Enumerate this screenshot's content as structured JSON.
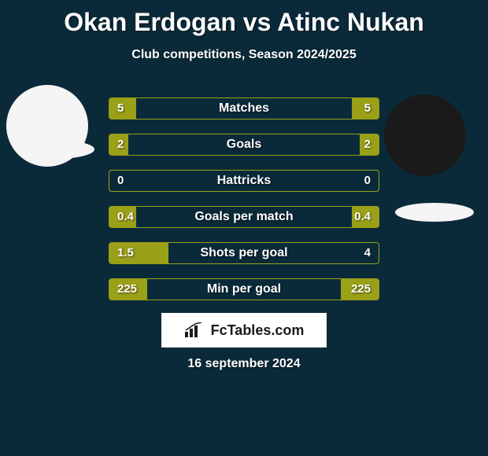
{
  "title": "Okan Erdogan vs Atinc Nukan",
  "subtitle": "Club competitions, Season 2024/2025",
  "date": "16 september 2024",
  "branding": "FcTables.com",
  "colors": {
    "background": "#0a2a3a",
    "border": "#9aa018",
    "bar": "#9aa018",
    "text": "#ffffff",
    "avatar_light": "#f5f5f5",
    "avatar_dark": "#1a1a1a",
    "brand_bg": "#ffffff"
  },
  "stats": [
    {
      "label": "Matches",
      "left_val": "5",
      "right_val": "5",
      "left_pct": 10,
      "right_pct": 10
    },
    {
      "label": "Goals",
      "left_val": "2",
      "right_val": "2",
      "left_pct": 7,
      "right_pct": 7
    },
    {
      "label": "Hattricks",
      "left_val": "0",
      "right_val": "0",
      "left_pct": 0,
      "right_pct": 0
    },
    {
      "label": "Goals per match",
      "left_val": "0.4",
      "right_val": "0.4",
      "left_pct": 10,
      "right_pct": 10
    },
    {
      "label": "Shots per goal",
      "left_val": "1.5",
      "right_val": "4",
      "left_pct": 22,
      "right_pct": 0
    },
    {
      "label": "Min per goal",
      "left_val": "225",
      "right_val": "225",
      "left_pct": 14,
      "right_pct": 14
    }
  ]
}
